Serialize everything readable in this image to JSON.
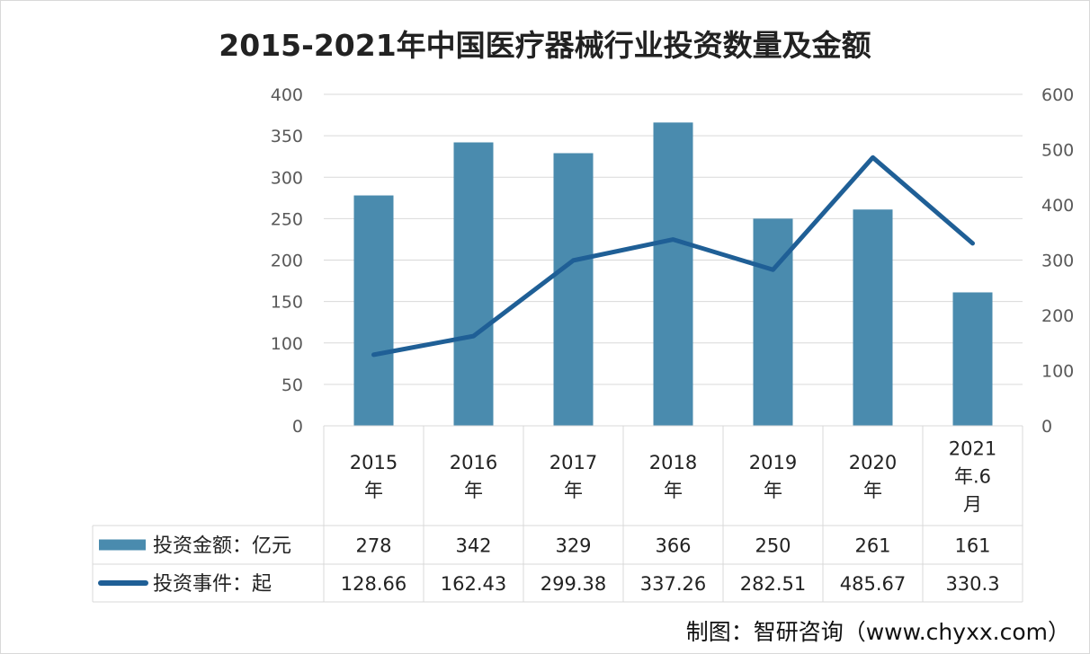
{
  "chart_data": {
    "type": "bar+line",
    "title": "2015-2021年中国医疗器械行业投资数量及金额",
    "categories": [
      "2015\n年",
      "2016\n年",
      "2017\n年",
      "2018\n年",
      "2019\n年",
      "2020\n年",
      "2021\n年.6\n月"
    ],
    "series": [
      {
        "name": "投资金额：亿元",
        "type": "bar",
        "axis": "left",
        "color": "#4a8bae",
        "values": [
          278,
          342,
          329,
          366,
          250,
          261,
          161
        ],
        "labels": [
          "278",
          "342",
          "329",
          "366",
          "250",
          "261",
          "161"
        ]
      },
      {
        "name": "投资事件：起",
        "type": "line",
        "axis": "right",
        "color": "#1f5f96",
        "values": [
          128.66,
          162.43,
          299.38,
          337.26,
          282.51,
          485.67,
          330.3
        ],
        "labels": [
          "128.66",
          "162.43",
          "299.38",
          "337.26",
          "282.51",
          "485.67",
          "330.3"
        ]
      }
    ],
    "ylim_left": [
      0,
      400
    ],
    "yticks_left": [
      0,
      50,
      100,
      150,
      200,
      250,
      300,
      350,
      400
    ],
    "ylim_right": [
      0,
      600
    ],
    "yticks_right": [
      0,
      100,
      200,
      300,
      400,
      500,
      600
    ],
    "grid": true,
    "legend": "data-table"
  },
  "footer": "制图：智研咨询（www.chyxx.com）"
}
